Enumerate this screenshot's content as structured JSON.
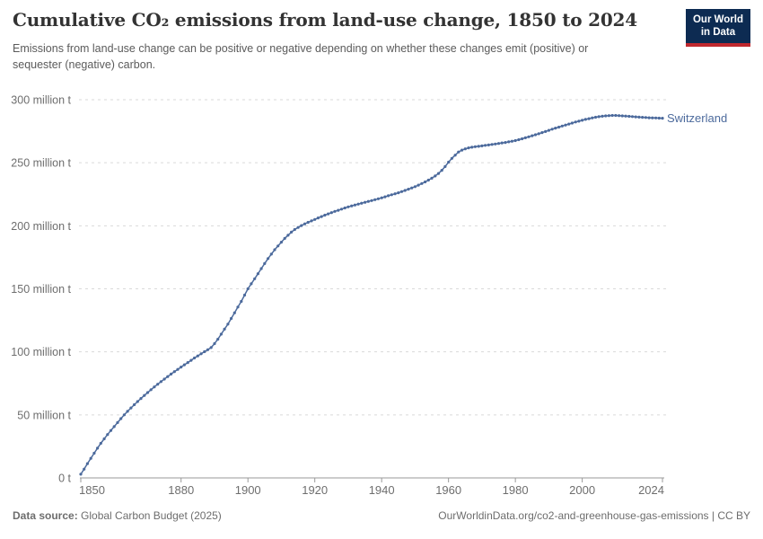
{
  "header": {
    "title": "Cumulative CO₂ emissions from land-use change, 1850 to 2024",
    "subtitle": "Emissions from land-use change can be positive or negative depending on whether these changes emit (positive) or sequester (negative) carbon.",
    "logo": {
      "line1": "Our World",
      "line2": "in Data"
    }
  },
  "chart_data": {
    "type": "line",
    "title": "Cumulative CO₂ emissions from land-use change, 1850 to 2024",
    "xlabel": "",
    "ylabel": "",
    "xlim": [
      1850,
      2024
    ],
    "ylim": [
      0,
      300
    ],
    "grid": "horizontal-dashed",
    "legend_position": "end-of-line-label",
    "x_ticks": [
      1850,
      1880,
      1900,
      1920,
      1940,
      1960,
      1980,
      2000,
      2024
    ],
    "y_ticks": [
      {
        "value": 0,
        "label": "0 t"
      },
      {
        "value": 50,
        "label": "50 million t"
      },
      {
        "value": 100,
        "label": "100 million t"
      },
      {
        "value": 150,
        "label": "150 million t"
      },
      {
        "value": 200,
        "label": "200 million t"
      },
      {
        "value": 250,
        "label": "250 million t"
      },
      {
        "value": 300,
        "label": "300 million t"
      }
    ],
    "series": [
      {
        "name": "Switzerland",
        "unit": "million t",
        "x_start": 1850,
        "x_step": 1,
        "values": [
          2.9,
          7.0,
          11.3,
          15.5,
          19.6,
          23.6,
          27.4,
          31.0,
          34.4,
          37.6,
          40.7,
          43.9,
          47.0,
          50.0,
          52.8,
          55.5,
          58.1,
          60.6,
          63.0,
          65.4,
          67.7,
          70.0,
          72.2,
          74.3,
          76.4,
          78.4,
          80.4,
          82.4,
          84.3,
          86.1,
          87.9,
          89.7,
          91.5,
          93.3,
          95.1,
          96.8,
          98.5,
          100.1,
          101.7,
          103.4,
          106.5,
          110.0,
          114.0,
          118.0,
          122.0,
          126.5,
          131.0,
          135.5,
          140.0,
          145.0,
          150.0,
          154.0,
          158.0,
          162.0,
          166.0,
          170.0,
          174.0,
          177.5,
          181.0,
          184.0,
          187.0,
          190.0,
          192.5,
          195.0,
          197.0,
          198.7,
          200.2,
          201.5,
          202.7,
          203.9,
          205.0,
          206.2,
          207.3,
          208.4,
          209.4,
          210.4,
          211.4,
          212.3,
          213.2,
          214.1,
          215.0,
          215.8,
          216.5,
          217.2,
          217.9,
          218.6,
          219.3,
          220.0,
          220.7,
          221.4,
          222.2,
          223.0,
          223.8,
          224.6,
          225.4,
          226.2,
          227.1,
          228.0,
          229.0,
          230.0,
          231.0,
          232.2,
          233.5,
          234.8,
          236.2,
          237.7,
          239.5,
          241.5,
          244.0,
          247.0,
          250.5,
          253.5,
          256.0,
          258.5,
          260.0,
          261.0,
          261.8,
          262.3,
          262.7,
          263.0,
          263.4,
          263.8,
          264.1,
          264.5,
          264.9,
          265.3,
          265.7,
          266.1,
          266.6,
          267.1,
          267.6,
          268.3,
          269.0,
          269.8,
          270.6,
          271.4,
          272.2,
          273.0,
          273.9,
          274.8,
          275.7,
          276.6,
          277.5,
          278.3,
          279.1,
          279.9,
          280.7,
          281.5,
          282.3,
          283.0,
          283.7,
          284.4,
          285.0,
          285.6,
          286.1,
          286.5,
          286.9,
          287.2,
          287.4,
          287.5,
          287.5,
          287.4,
          287.2,
          287.0,
          286.8,
          286.6,
          286.4,
          286.2,
          286.0,
          285.9,
          285.7,
          285.6,
          285.5,
          285.4,
          285.3
        ]
      }
    ]
  },
  "footer": {
    "source_label": "Data source:",
    "source_text": " Global Carbon Budget (2025)",
    "right_text": "OurWorldinData.org/co2-and-greenhouse-gas-emissions | CC BY"
  },
  "colors": {
    "line": "#4c6a9c",
    "entity_label": "#4c6a9c",
    "logo_bg": "#0d2b52",
    "logo_accent": "#c0282e",
    "title_text": "#333333",
    "subtitle_text": "#5b5b5b",
    "axis_text": "#6e6e6e",
    "grid": "#dadada",
    "axis_line": "#999999",
    "footer_text": "#6d6d6d"
  }
}
